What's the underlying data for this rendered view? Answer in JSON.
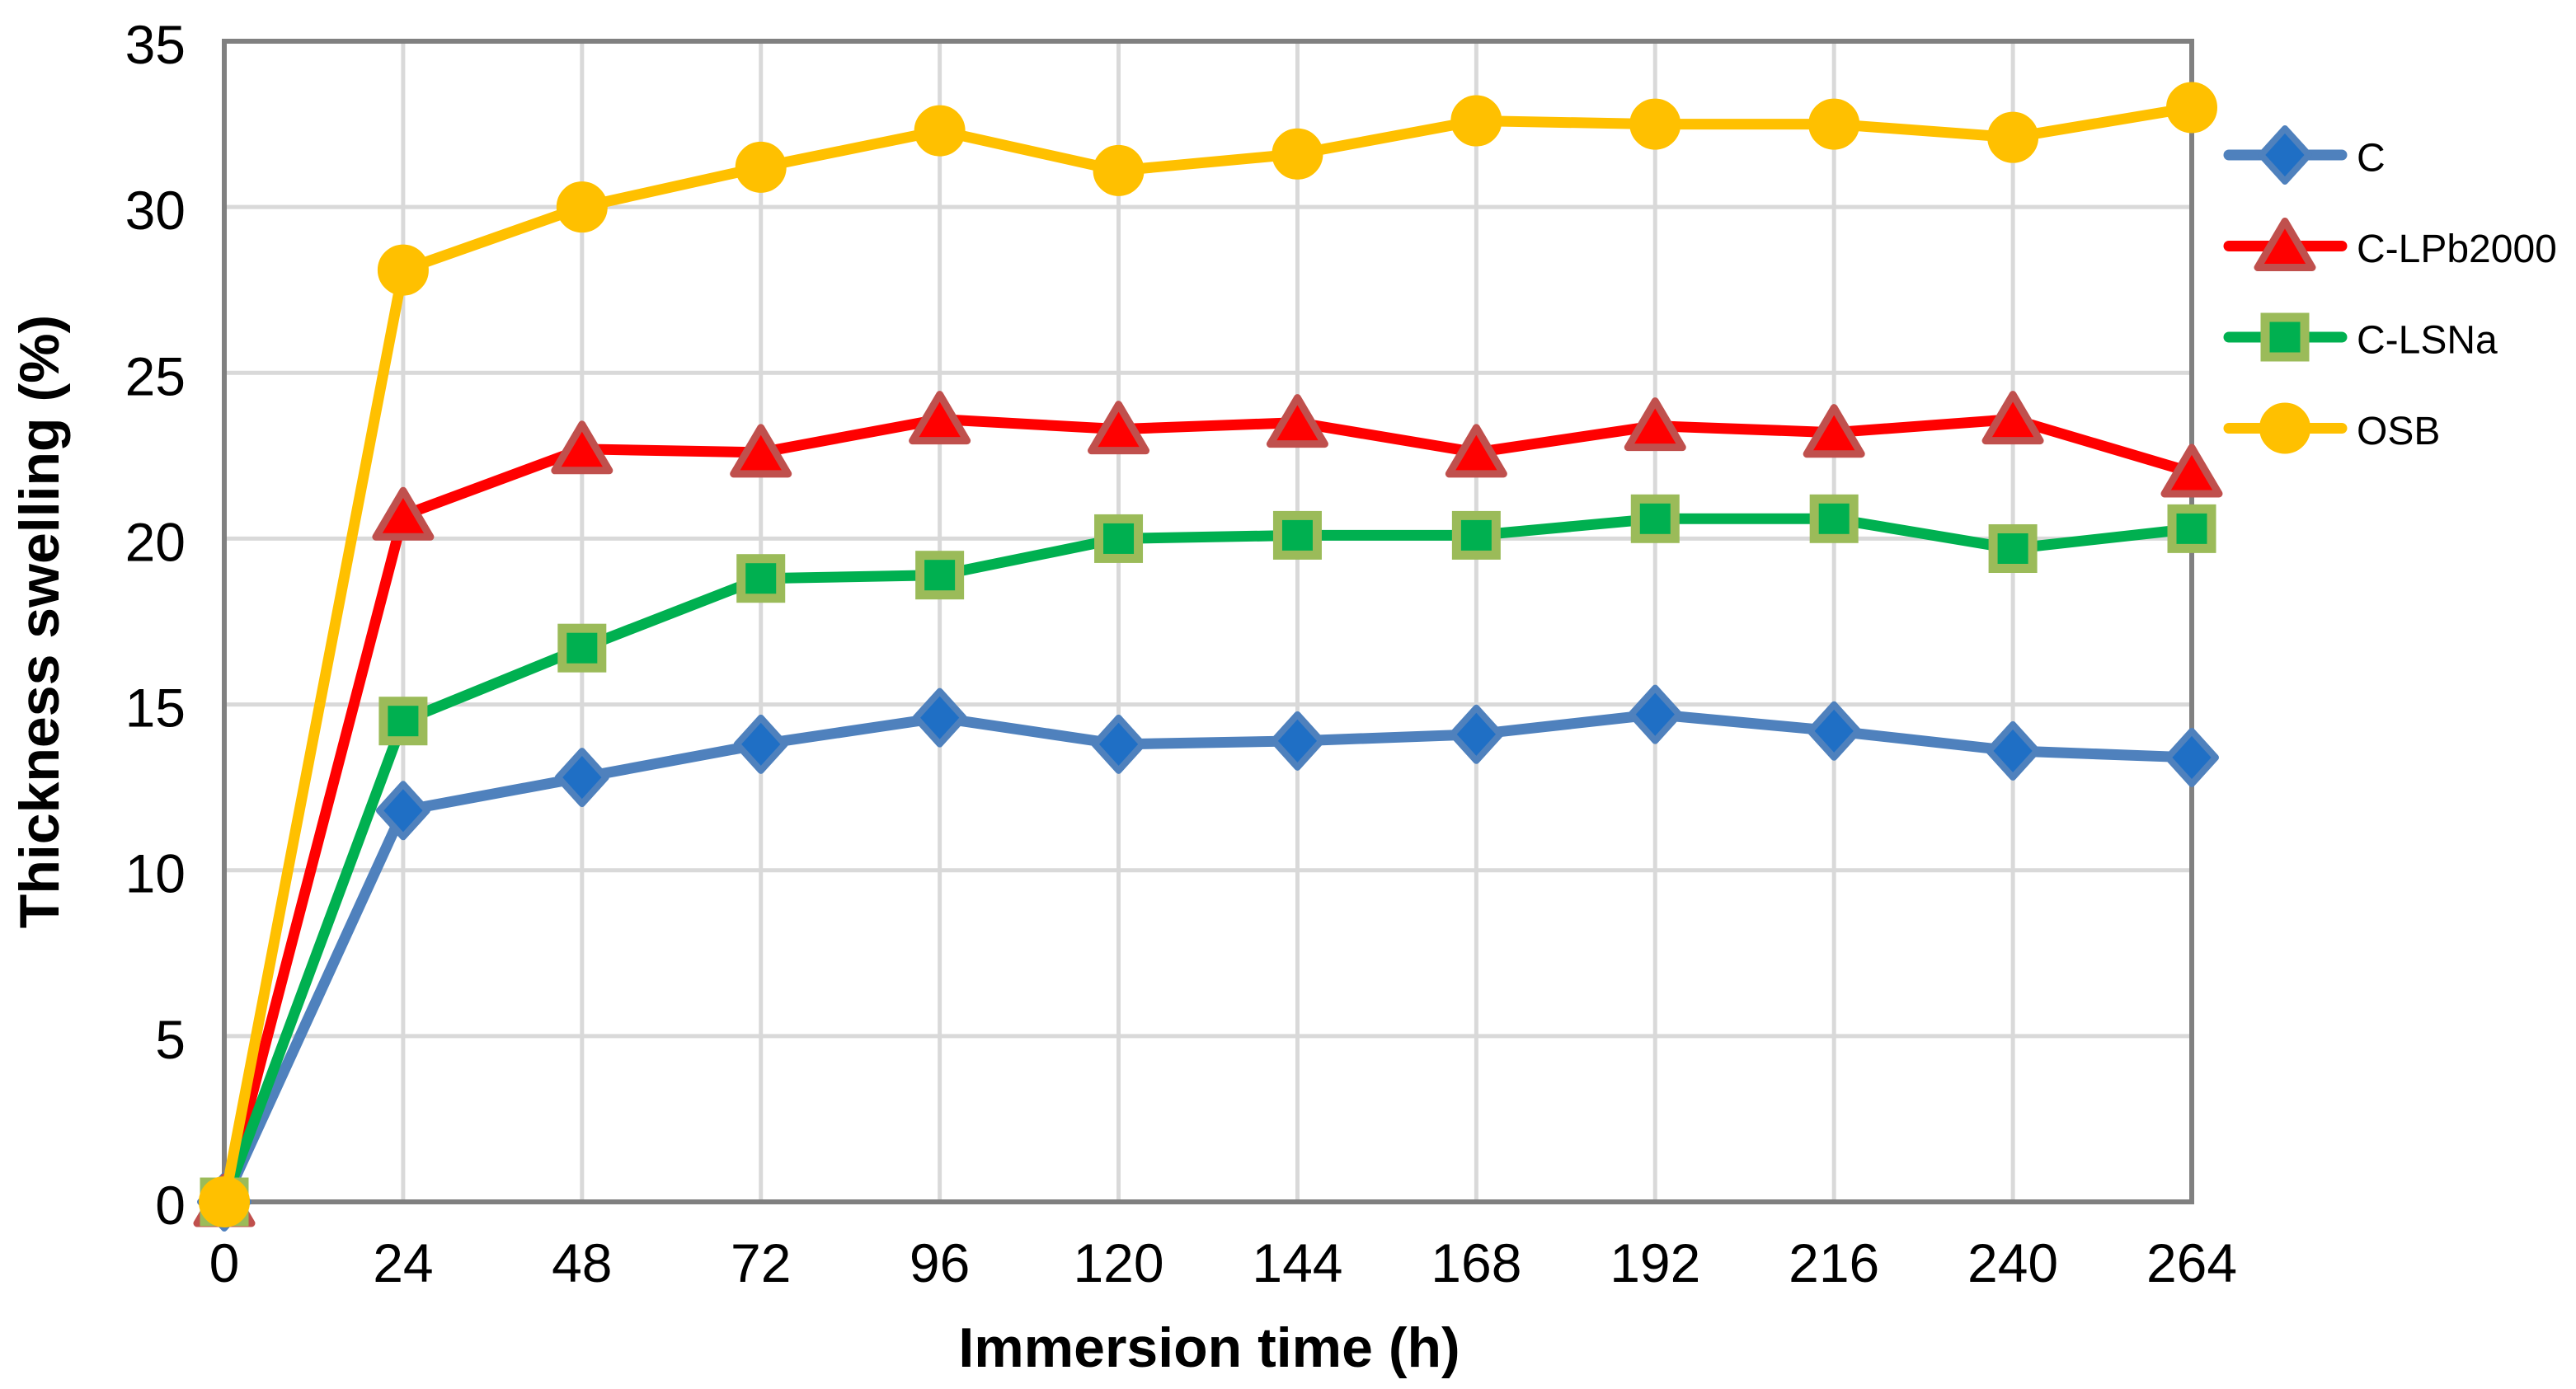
{
  "chart_data": {
    "type": "line",
    "title": "",
    "xlabel": "Immersion time (h)",
    "ylabel": "Thickness swelling (%)",
    "x": [
      0,
      24,
      48,
      72,
      96,
      120,
      144,
      168,
      192,
      216,
      240,
      264
    ],
    "ylim": [
      0,
      35
    ],
    "y_tick_step": 5,
    "y_ticks": [
      0,
      5,
      10,
      15,
      20,
      25,
      30,
      35
    ],
    "grid": true,
    "legend_position": "right",
    "series": [
      {
        "name": "C",
        "marker": "diamond",
        "line_color": "#4F81BD",
        "marker_fill": "#1F6FC5",
        "marker_stroke": "#4F81BD",
        "values": [
          0,
          11.8,
          12.8,
          13.8,
          14.6,
          13.8,
          13.9,
          14.1,
          14.7,
          14.2,
          13.6,
          13.4
        ]
      },
      {
        "name": "C-LPb2000",
        "marker": "triangle",
        "line_color": "#FF0000",
        "marker_fill": "#FF0000",
        "marker_stroke": "#C0504D",
        "values": [
          0,
          20.7,
          22.7,
          22.6,
          23.6,
          23.3,
          23.5,
          22.6,
          23.4,
          23.2,
          23.6,
          22.0
        ]
      },
      {
        "name": "C-LSNa",
        "marker": "square",
        "line_color": "#00B050",
        "marker_fill": "#00B050",
        "marker_stroke": "#9BBB59",
        "values": [
          0,
          14.5,
          16.7,
          18.8,
          18.9,
          20.0,
          20.1,
          20.1,
          20.6,
          20.6,
          19.7,
          20.3
        ]
      },
      {
        "name": "OSB",
        "marker": "circle",
        "line_color": "#FFC000",
        "marker_fill": "#FFC000",
        "marker_stroke": "#FFC000",
        "values": [
          0,
          28.1,
          30.0,
          31.2,
          32.3,
          31.1,
          31.6,
          32.6,
          32.5,
          32.5,
          32.1,
          33.0
        ]
      }
    ],
    "colors": {
      "gridline": "#D9D9D9",
      "plot_border": "#808080",
      "text": "#000000",
      "background": "#FFFFFF"
    }
  }
}
